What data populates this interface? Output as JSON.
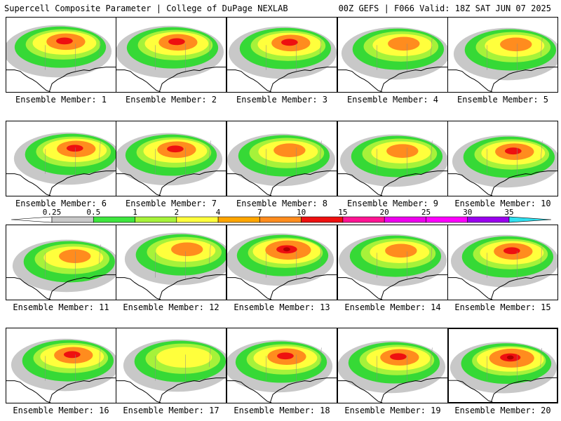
{
  "header": {
    "title": "Supercell Composite Parameter | College of DuPage NEXLAB",
    "run_info": "00Z GEFS | F066 Valid: 18Z SAT JUN 07 2025"
  },
  "member_label_prefix": "Ensemble Member:",
  "members": [
    {
      "number": "1",
      "intensity": 2
    },
    {
      "number": "2",
      "intensity": 2
    },
    {
      "number": "3",
      "intensity": 2
    },
    {
      "number": "4",
      "intensity": 1
    },
    {
      "number": "5",
      "intensity": 1
    },
    {
      "number": "6",
      "intensity": 2
    },
    {
      "number": "7",
      "intensity": 2
    },
    {
      "number": "8",
      "intensity": 1
    },
    {
      "number": "9",
      "intensity": 1
    },
    {
      "number": "10",
      "intensity": 2
    },
    {
      "number": "11",
      "intensity": 1
    },
    {
      "number": "12",
      "intensity": 1
    },
    {
      "number": "13",
      "intensity": 3
    },
    {
      "number": "14",
      "intensity": 1
    },
    {
      "number": "15",
      "intensity": 2
    },
    {
      "number": "16",
      "intensity": 2
    },
    {
      "number": "17",
      "intensity": 0
    },
    {
      "number": "18",
      "intensity": 2
    },
    {
      "number": "19",
      "intensity": 2
    },
    {
      "number": "20",
      "intensity": 3
    }
  ],
  "selected_member": "20",
  "color_scale": {
    "labels": [
      "0.25",
      "0.5",
      "1",
      "2",
      "4",
      "7",
      "10",
      "15",
      "20",
      "25",
      "30",
      "35"
    ],
    "colors": [
      "#c8c8c8",
      "#3ee63e",
      "#a6f23a",
      "#ffff3c",
      "#ffa500",
      "#ff8c1e",
      "#ee1010",
      "#ff1493",
      "#ee00ee",
      "#ff00ff",
      "#9a00ee",
      "#b060ee",
      "#30e0f0"
    ]
  },
  "colors": {
    "coastline": "#000000",
    "gray": "#c8c8c8",
    "green": "#36d936",
    "lime": "#a6f23a",
    "yellow": "#ffff3c",
    "orange": "#ff8c1e",
    "red": "#ee1010"
  }
}
